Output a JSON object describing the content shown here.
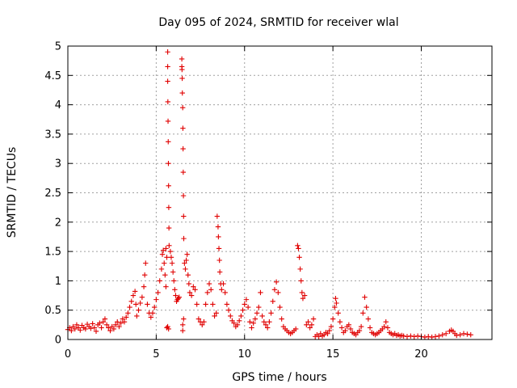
{
  "chart_data": {
    "type": "scatter",
    "title": "Day 095 of 2024, SRMTID for receiver wlal",
    "xlabel": "GPS time / hours",
    "ylabel": "SRMTID / TECUs",
    "xlim": [
      0,
      24
    ],
    "ylim": [
      0,
      5
    ],
    "xticks": [
      0,
      5,
      10,
      15,
      20
    ],
    "xtick_labels": [
      "0",
      "5",
      "10",
      "15",
      "20"
    ],
    "yticks": [
      0,
      0.5,
      1,
      1.5,
      2,
      2.5,
      3,
      3.5,
      4,
      4.5,
      5
    ],
    "ytick_labels": [
      "0",
      "0.5",
      "1",
      "1.5",
      "2",
      "2.5",
      "3",
      "3.5",
      "4",
      "4.5",
      "5"
    ],
    "grid": true,
    "marker": "+",
    "color": "#e00000",
    "series": [
      {
        "name": "SRMTID",
        "points": [
          [
            0.0,
            0.17
          ],
          [
            0.1,
            0.2
          ],
          [
            0.2,
            0.15
          ],
          [
            0.3,
            0.22
          ],
          [
            0.4,
            0.18
          ],
          [
            0.5,
            0.25
          ],
          [
            0.6,
            0.2
          ],
          [
            0.7,
            0.16
          ],
          [
            0.8,
            0.24
          ],
          [
            0.9,
            0.2
          ],
          [
            1.0,
            0.18
          ],
          [
            1.1,
            0.26
          ],
          [
            1.2,
            0.22
          ],
          [
            1.3,
            0.19
          ],
          [
            1.4,
            0.27
          ],
          [
            1.5,
            0.2
          ],
          [
            1.6,
            0.14
          ],
          [
            1.7,
            0.25
          ],
          [
            1.8,
            0.28
          ],
          [
            1.9,
            0.2
          ],
          [
            2.0,
            0.3
          ],
          [
            2.1,
            0.35
          ],
          [
            2.2,
            0.25
          ],
          [
            2.3,
            0.2
          ],
          [
            2.4,
            0.15
          ],
          [
            2.5,
            0.22
          ],
          [
            2.6,
            0.18
          ],
          [
            2.7,
            0.25
          ],
          [
            2.8,
            0.3
          ],
          [
            2.9,
            0.22
          ],
          [
            3.0,
            0.28
          ],
          [
            3.1,
            0.35
          ],
          [
            3.2,
            0.3
          ],
          [
            3.3,
            0.38
          ],
          [
            3.4,
            0.45
          ],
          [
            3.5,
            0.55
          ],
          [
            3.6,
            0.65
          ],
          [
            3.7,
            0.75
          ],
          [
            3.8,
            0.82
          ],
          [
            3.85,
            0.6
          ],
          [
            3.9,
            0.4
          ],
          [
            4.0,
            0.5
          ],
          [
            4.1,
            0.62
          ],
          [
            4.2,
            0.72
          ],
          [
            4.3,
            0.9
          ],
          [
            4.35,
            1.1
          ],
          [
            4.4,
            1.3
          ],
          [
            4.5,
            0.6
          ],
          [
            4.6,
            0.45
          ],
          [
            4.7,
            0.38
          ],
          [
            4.8,
            0.45
          ],
          [
            4.9,
            0.55
          ],
          [
            5.0,
            0.68
          ],
          [
            5.1,
            0.8
          ],
          [
            5.2,
            1.0
          ],
          [
            5.3,
            1.2
          ],
          [
            5.35,
            1.45
          ],
          [
            5.4,
            1.52
          ],
          [
            5.45,
            1.3
          ],
          [
            5.5,
            1.1
          ],
          [
            5.55,
            0.9
          ],
          [
            5.6,
            0.2
          ],
          [
            5.65,
            0.22
          ],
          [
            5.7,
            0.18
          ],
          [
            5.55,
            1.55
          ],
          [
            5.6,
            1.4
          ],
          [
            5.65,
            4.9
          ],
          [
            5.65,
            4.65
          ],
          [
            5.65,
            4.4
          ],
          [
            5.66,
            4.05
          ],
          [
            5.67,
            3.72
          ],
          [
            5.68,
            3.37
          ],
          [
            5.69,
            3.0
          ],
          [
            5.7,
            2.62
          ],
          [
            5.71,
            2.25
          ],
          [
            5.72,
            1.9
          ],
          [
            5.73,
            1.6
          ],
          [
            5.8,
            1.5
          ],
          [
            5.85,
            1.4
          ],
          [
            5.9,
            1.3
          ],
          [
            5.95,
            1.15
          ],
          [
            6.0,
            1.0
          ],
          [
            6.05,
            0.85
          ],
          [
            6.1,
            0.75
          ],
          [
            6.15,
            0.65
          ],
          [
            6.2,
            0.68
          ],
          [
            6.25,
            0.7
          ],
          [
            6.3,
            0.72
          ],
          [
            6.45,
            4.78
          ],
          [
            6.45,
            4.65
          ],
          [
            6.46,
            4.6
          ],
          [
            6.47,
            4.45
          ],
          [
            6.48,
            4.2
          ],
          [
            6.5,
            3.95
          ],
          [
            6.51,
            3.6
          ],
          [
            6.52,
            3.25
          ],
          [
            6.53,
            2.85
          ],
          [
            6.54,
            2.45
          ],
          [
            6.55,
            2.1
          ],
          [
            6.56,
            1.72
          ],
          [
            6.6,
            1.3
          ],
          [
            6.65,
            1.2
          ],
          [
            6.7,
            1.35
          ],
          [
            6.75,
            1.45
          ],
          [
            6.8,
            1.1
          ],
          [
            6.85,
            0.95
          ],
          [
            6.9,
            0.8
          ],
          [
            6.5,
            0.25
          ],
          [
            6.5,
            0.15
          ],
          [
            6.55,
            0.35
          ],
          [
            7.0,
            0.75
          ],
          [
            7.1,
            0.9
          ],
          [
            7.2,
            0.85
          ],
          [
            7.3,
            0.6
          ],
          [
            7.4,
            0.35
          ],
          [
            7.5,
            0.3
          ],
          [
            7.6,
            0.25
          ],
          [
            7.7,
            0.3
          ],
          [
            7.8,
            0.6
          ],
          [
            7.9,
            0.8
          ],
          [
            8.0,
            0.95
          ],
          [
            8.1,
            0.85
          ],
          [
            8.2,
            0.6
          ],
          [
            8.3,
            0.4
          ],
          [
            8.4,
            0.45
          ],
          [
            8.45,
            2.1
          ],
          [
            8.5,
            1.92
          ],
          [
            8.52,
            1.75
          ],
          [
            8.55,
            1.55
          ],
          [
            8.58,
            1.35
          ],
          [
            8.6,
            1.15
          ],
          [
            8.65,
            0.95
          ],
          [
            8.7,
            0.85
          ],
          [
            8.8,
            0.95
          ],
          [
            8.9,
            0.8
          ],
          [
            9.0,
            0.6
          ],
          [
            9.1,
            0.5
          ],
          [
            9.2,
            0.4
          ],
          [
            9.3,
            0.32
          ],
          [
            9.4,
            0.28
          ],
          [
            9.5,
            0.22
          ],
          [
            9.6,
            0.25
          ],
          [
            9.7,
            0.32
          ],
          [
            9.8,
            0.4
          ],
          [
            9.9,
            0.5
          ],
          [
            10.0,
            0.6
          ],
          [
            10.1,
            0.68
          ],
          [
            10.2,
            0.55
          ],
          [
            10.3,
            0.3
          ],
          [
            10.4,
            0.2
          ],
          [
            10.5,
            0.28
          ],
          [
            10.6,
            0.35
          ],
          [
            10.7,
            0.45
          ],
          [
            10.8,
            0.55
          ],
          [
            10.9,
            0.8
          ],
          [
            11.0,
            0.4
          ],
          [
            11.1,
            0.3
          ],
          [
            11.2,
            0.25
          ],
          [
            11.3,
            0.2
          ],
          [
            11.4,
            0.3
          ],
          [
            11.5,
            0.45
          ],
          [
            11.6,
            0.65
          ],
          [
            11.7,
            0.85
          ],
          [
            11.8,
            0.98
          ],
          [
            11.9,
            0.8
          ],
          [
            12.0,
            0.55
          ],
          [
            12.1,
            0.35
          ],
          [
            12.2,
            0.22
          ],
          [
            12.3,
            0.18
          ],
          [
            12.4,
            0.15
          ],
          [
            12.5,
            0.12
          ],
          [
            12.6,
            0.1
          ],
          [
            12.7,
            0.12
          ],
          [
            12.8,
            0.15
          ],
          [
            12.9,
            0.18
          ],
          [
            13.0,
            1.6
          ],
          [
            13.05,
            1.55
          ],
          [
            13.1,
            1.4
          ],
          [
            13.15,
            1.2
          ],
          [
            13.2,
            1.0
          ],
          [
            13.25,
            0.8
          ],
          [
            13.3,
            0.7
          ],
          [
            13.4,
            0.75
          ],
          [
            13.5,
            0.25
          ],
          [
            13.6,
            0.3
          ],
          [
            13.7,
            0.2
          ],
          [
            13.8,
            0.25
          ],
          [
            13.9,
            0.35
          ],
          [
            14.0,
            0.05
          ],
          [
            14.1,
            0.08
          ],
          [
            14.2,
            0.05
          ],
          [
            14.3,
            0.1
          ],
          [
            14.4,
            0.06
          ],
          [
            14.5,
            0.08
          ],
          [
            14.6,
            0.12
          ],
          [
            14.7,
            0.1
          ],
          [
            14.8,
            0.15
          ],
          [
            14.9,
            0.22
          ],
          [
            15.0,
            0.35
          ],
          [
            15.1,
            0.55
          ],
          [
            15.15,
            0.7
          ],
          [
            15.2,
            0.62
          ],
          [
            15.3,
            0.45
          ],
          [
            15.4,
            0.3
          ],
          [
            15.5,
            0.2
          ],
          [
            15.6,
            0.12
          ],
          [
            15.7,
            0.15
          ],
          [
            15.8,
            0.22
          ],
          [
            15.9,
            0.25
          ],
          [
            16.0,
            0.18
          ],
          [
            16.1,
            0.12
          ],
          [
            16.2,
            0.1
          ],
          [
            16.3,
            0.08
          ],
          [
            16.4,
            0.12
          ],
          [
            16.5,
            0.15
          ],
          [
            16.6,
            0.22
          ],
          [
            16.7,
            0.45
          ],
          [
            16.8,
            0.72
          ],
          [
            16.9,
            0.55
          ],
          [
            17.0,
            0.35
          ],
          [
            17.1,
            0.2
          ],
          [
            17.2,
            0.12
          ],
          [
            17.3,
            0.1
          ],
          [
            17.4,
            0.08
          ],
          [
            17.5,
            0.1
          ],
          [
            17.6,
            0.12
          ],
          [
            17.7,
            0.15
          ],
          [
            17.8,
            0.18
          ],
          [
            17.9,
            0.22
          ],
          [
            18.0,
            0.3
          ],
          [
            18.1,
            0.2
          ],
          [
            18.2,
            0.12
          ],
          [
            18.3,
            0.1
          ],
          [
            18.4,
            0.08
          ],
          [
            18.5,
            0.1
          ],
          [
            18.6,
            0.07
          ],
          [
            18.7,
            0.08
          ],
          [
            18.8,
            0.06
          ],
          [
            18.9,
            0.07
          ],
          [
            19.0,
            0.06
          ],
          [
            19.2,
            0.05
          ],
          [
            19.4,
            0.06
          ],
          [
            19.6,
            0.05
          ],
          [
            19.8,
            0.06
          ],
          [
            20.0,
            0.05
          ],
          [
            20.2,
            0.04
          ],
          [
            20.4,
            0.05
          ],
          [
            20.6,
            0.04
          ],
          [
            20.8,
            0.05
          ],
          [
            21.0,
            0.06
          ],
          [
            21.2,
            0.08
          ],
          [
            21.4,
            0.1
          ],
          [
            21.6,
            0.14
          ],
          [
            21.7,
            0.16
          ],
          [
            21.8,
            0.14
          ],
          [
            21.9,
            0.1
          ],
          [
            22.0,
            0.07
          ],
          [
            22.2,
            0.08
          ],
          [
            22.4,
            0.1
          ],
          [
            22.6,
            0.09
          ],
          [
            22.8,
            0.08
          ]
        ]
      }
    ]
  }
}
